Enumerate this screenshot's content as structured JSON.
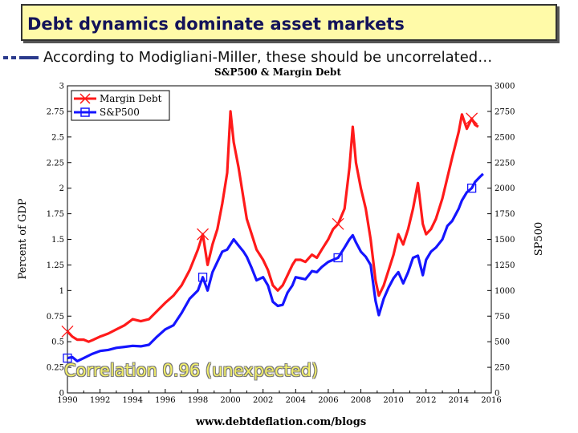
{
  "slide": {
    "title": "Debt dynamics dominate asset markets",
    "bullet": "According to Modigliani-Miller, these should be uncorrelated…"
  },
  "colors": {
    "margin_debt": "#ff1a1a",
    "sp500": "#1515ff",
    "title_bg": "#fffaa8",
    "title_text": "#13135a",
    "annotation": "#f2ef6a"
  },
  "chart_data": {
    "type": "line",
    "title": "S&P500 & Margin Debt",
    "ylabel": "Percent of GDP",
    "y2label": "SP500",
    "source": "www.debtdeflation.com/blogs",
    "annotation": "Correlation 0.96 (unexpected)",
    "xlim": [
      1990,
      2016
    ],
    "ylim": [
      0,
      3
    ],
    "y2lim": [
      0,
      3000
    ],
    "x_ticks": [
      "1990",
      "1992",
      "1994",
      "1996",
      "1998",
      "2000",
      "2002",
      "2004",
      "2006",
      "2008",
      "2010",
      "2012",
      "2014",
      "2016"
    ],
    "y_ticks": [
      "0",
      "0.25",
      "0.5",
      "0.75",
      "1",
      "1.25",
      "1.5",
      "1.75",
      "2",
      "2.25",
      "2.5",
      "2.75",
      "3"
    ],
    "y2_ticks": [
      "0",
      "250",
      "500",
      "750",
      "1000",
      "1250",
      "1500",
      "1750",
      "2000",
      "2250",
      "2500",
      "2750",
      "3000"
    ],
    "legend": {
      "position": "top-left",
      "entries": [
        "Margin Debt",
        "S&P500"
      ]
    },
    "series": [
      {
        "name": "Margin Debt",
        "axis": "left",
        "marker": "x",
        "points": [
          [
            1990.0,
            0.6
          ],
          [
            1990.3,
            0.55
          ],
          [
            1990.6,
            0.52
          ],
          [
            1991.0,
            0.52
          ],
          [
            1991.3,
            0.5
          ],
          [
            1991.6,
            0.52
          ],
          [
            1992.0,
            0.55
          ],
          [
            1992.5,
            0.58
          ],
          [
            1993.0,
            0.62
          ],
          [
            1993.5,
            0.66
          ],
          [
            1994.0,
            0.72
          ],
          [
            1994.5,
            0.7
          ],
          [
            1995.0,
            0.72
          ],
          [
            1995.5,
            0.8
          ],
          [
            1996.0,
            0.88
          ],
          [
            1996.5,
            0.95
          ],
          [
            1997.0,
            1.05
          ],
          [
            1997.5,
            1.2
          ],
          [
            1998.0,
            1.4
          ],
          [
            1998.3,
            1.55
          ],
          [
            1998.6,
            1.25
          ],
          [
            1998.9,
            1.45
          ],
          [
            1999.2,
            1.6
          ],
          [
            1999.5,
            1.85
          ],
          [
            1999.8,
            2.15
          ],
          [
            2000.0,
            2.75
          ],
          [
            2000.2,
            2.45
          ],
          [
            2000.5,
            2.2
          ],
          [
            2000.8,
            1.9
          ],
          [
            2001.0,
            1.7
          ],
          [
            2001.3,
            1.55
          ],
          [
            2001.6,
            1.4
          ],
          [
            2002.0,
            1.3
          ],
          [
            2002.3,
            1.2
          ],
          [
            2002.6,
            1.05
          ],
          [
            2002.9,
            1.0
          ],
          [
            2003.2,
            1.05
          ],
          [
            2003.5,
            1.15
          ],
          [
            2003.8,
            1.25
          ],
          [
            2004.0,
            1.3
          ],
          [
            2004.3,
            1.3
          ],
          [
            2004.6,
            1.28
          ],
          [
            2005.0,
            1.35
          ],
          [
            2005.3,
            1.32
          ],
          [
            2005.6,
            1.4
          ],
          [
            2006.0,
            1.5
          ],
          [
            2006.3,
            1.6
          ],
          [
            2006.6,
            1.65
          ],
          [
            2007.0,
            1.8
          ],
          [
            2007.3,
            2.2
          ],
          [
            2007.5,
            2.6
          ],
          [
            2007.7,
            2.25
          ],
          [
            2008.0,
            2.0
          ],
          [
            2008.3,
            1.8
          ],
          [
            2008.6,
            1.5
          ],
          [
            2008.9,
            1.1
          ],
          [
            2009.1,
            0.95
          ],
          [
            2009.4,
            1.05
          ],
          [
            2009.7,
            1.2
          ],
          [
            2010.0,
            1.35
          ],
          [
            2010.3,
            1.55
          ],
          [
            2010.6,
            1.45
          ],
          [
            2010.9,
            1.6
          ],
          [
            2011.2,
            1.8
          ],
          [
            2011.5,
            2.05
          ],
          [
            2011.8,
            1.65
          ],
          [
            2012.0,
            1.55
          ],
          [
            2012.3,
            1.6
          ],
          [
            2012.6,
            1.7
          ],
          [
            2013.0,
            1.9
          ],
          [
            2013.3,
            2.1
          ],
          [
            2013.6,
            2.3
          ],
          [
            2014.0,
            2.55
          ],
          [
            2014.2,
            2.72
          ],
          [
            2014.5,
            2.58
          ],
          [
            2014.8,
            2.68
          ],
          [
            2015.0,
            2.62
          ],
          [
            2015.2,
            2.6
          ]
        ]
      },
      {
        "name": "S&P500",
        "axis": "right",
        "marker": "square",
        "points": [
          [
            1990.0,
            340
          ],
          [
            1990.3,
            350
          ],
          [
            1990.6,
            310
          ],
          [
            1991.0,
            340
          ],
          [
            1991.5,
            380
          ],
          [
            1992.0,
            410
          ],
          [
            1992.5,
            420
          ],
          [
            1993.0,
            440
          ],
          [
            1993.5,
            450
          ],
          [
            1994.0,
            460
          ],
          [
            1994.5,
            455
          ],
          [
            1995.0,
            470
          ],
          [
            1995.5,
            550
          ],
          [
            1996.0,
            620
          ],
          [
            1996.5,
            660
          ],
          [
            1997.0,
            780
          ],
          [
            1997.5,
            920
          ],
          [
            1998.0,
            1000
          ],
          [
            1998.3,
            1130
          ],
          [
            1998.6,
            1000
          ],
          [
            1998.9,
            1180
          ],
          [
            1999.2,
            1280
          ],
          [
            1999.5,
            1380
          ],
          [
            1999.8,
            1400
          ],
          [
            2000.0,
            1450
          ],
          [
            2000.2,
            1500
          ],
          [
            2000.5,
            1440
          ],
          [
            2000.8,
            1380
          ],
          [
            2001.0,
            1330
          ],
          [
            2001.3,
            1220
          ],
          [
            2001.6,
            1100
          ],
          [
            2002.0,
            1130
          ],
          [
            2002.3,
            1050
          ],
          [
            2002.6,
            890
          ],
          [
            2002.9,
            850
          ],
          [
            2003.2,
            860
          ],
          [
            2003.5,
            980
          ],
          [
            2003.8,
            1050
          ],
          [
            2004.0,
            1130
          ],
          [
            2004.3,
            1120
          ],
          [
            2004.6,
            1110
          ],
          [
            2005.0,
            1190
          ],
          [
            2005.3,
            1180
          ],
          [
            2005.6,
            1230
          ],
          [
            2006.0,
            1280
          ],
          [
            2006.3,
            1300
          ],
          [
            2006.6,
            1320
          ],
          [
            2007.0,
            1420
          ],
          [
            2007.3,
            1500
          ],
          [
            2007.5,
            1540
          ],
          [
            2007.7,
            1470
          ],
          [
            2008.0,
            1380
          ],
          [
            2008.3,
            1330
          ],
          [
            2008.6,
            1250
          ],
          [
            2008.9,
            900
          ],
          [
            2009.1,
            760
          ],
          [
            2009.4,
            920
          ],
          [
            2009.7,
            1030
          ],
          [
            2010.0,
            1120
          ],
          [
            2010.3,
            1180
          ],
          [
            2010.6,
            1070
          ],
          [
            2010.9,
            1180
          ],
          [
            2011.2,
            1320
          ],
          [
            2011.5,
            1340
          ],
          [
            2011.8,
            1150
          ],
          [
            2012.0,
            1300
          ],
          [
            2012.3,
            1380
          ],
          [
            2012.6,
            1420
          ],
          [
            2013.0,
            1500
          ],
          [
            2013.3,
            1630
          ],
          [
            2013.6,
            1680
          ],
          [
            2014.0,
            1800
          ],
          [
            2014.2,
            1880
          ],
          [
            2014.5,
            1960
          ],
          [
            2014.8,
            2000
          ],
          [
            2015.0,
            2060
          ],
          [
            2015.3,
            2110
          ],
          [
            2015.5,
            2140
          ]
        ]
      }
    ]
  }
}
